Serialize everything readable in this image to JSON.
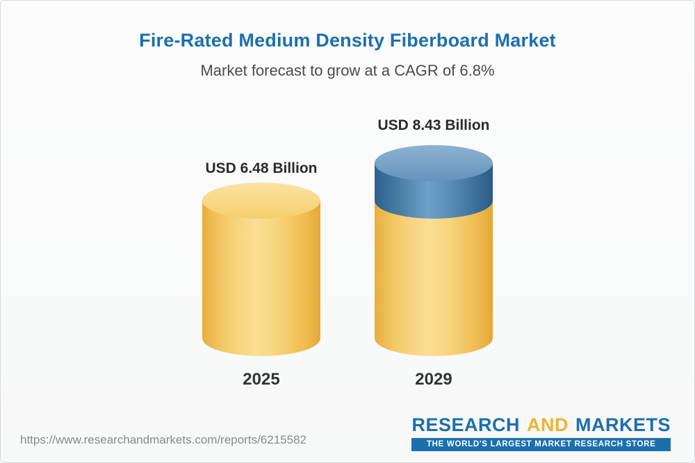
{
  "chart_data": {
    "type": "bar",
    "title": "Fire-Rated Medium Density Fiberboard Market",
    "subtitle": "Market forecast to grow at a CAGR of 6.8%",
    "categories": [
      "2025",
      "2029"
    ],
    "values": [
      6.48,
      8.43
    ],
    "value_labels": [
      "USD 6.48 Billion",
      "USD 8.43 Billion"
    ],
    "unit": "USD Billion",
    "cagr_pct": 6.8,
    "ylim": [
      0,
      9
    ],
    "grid": false,
    "legend_position": "none",
    "colors": {
      "bar_base_yellow": "#f6cf6e",
      "bar_growth_blue": "#4a7fae",
      "title_blue": "#1c6fad",
      "label_dark": "#2b2b2b"
    }
  },
  "footer": {
    "url": "https://www.researchandmarkets.com/reports/6215582",
    "logo": {
      "part1": "RESEARCH",
      "part2": "AND",
      "part3": "MARKETS",
      "tagline": "THE WORLD'S LARGEST MARKET RESEARCH STORE"
    }
  }
}
